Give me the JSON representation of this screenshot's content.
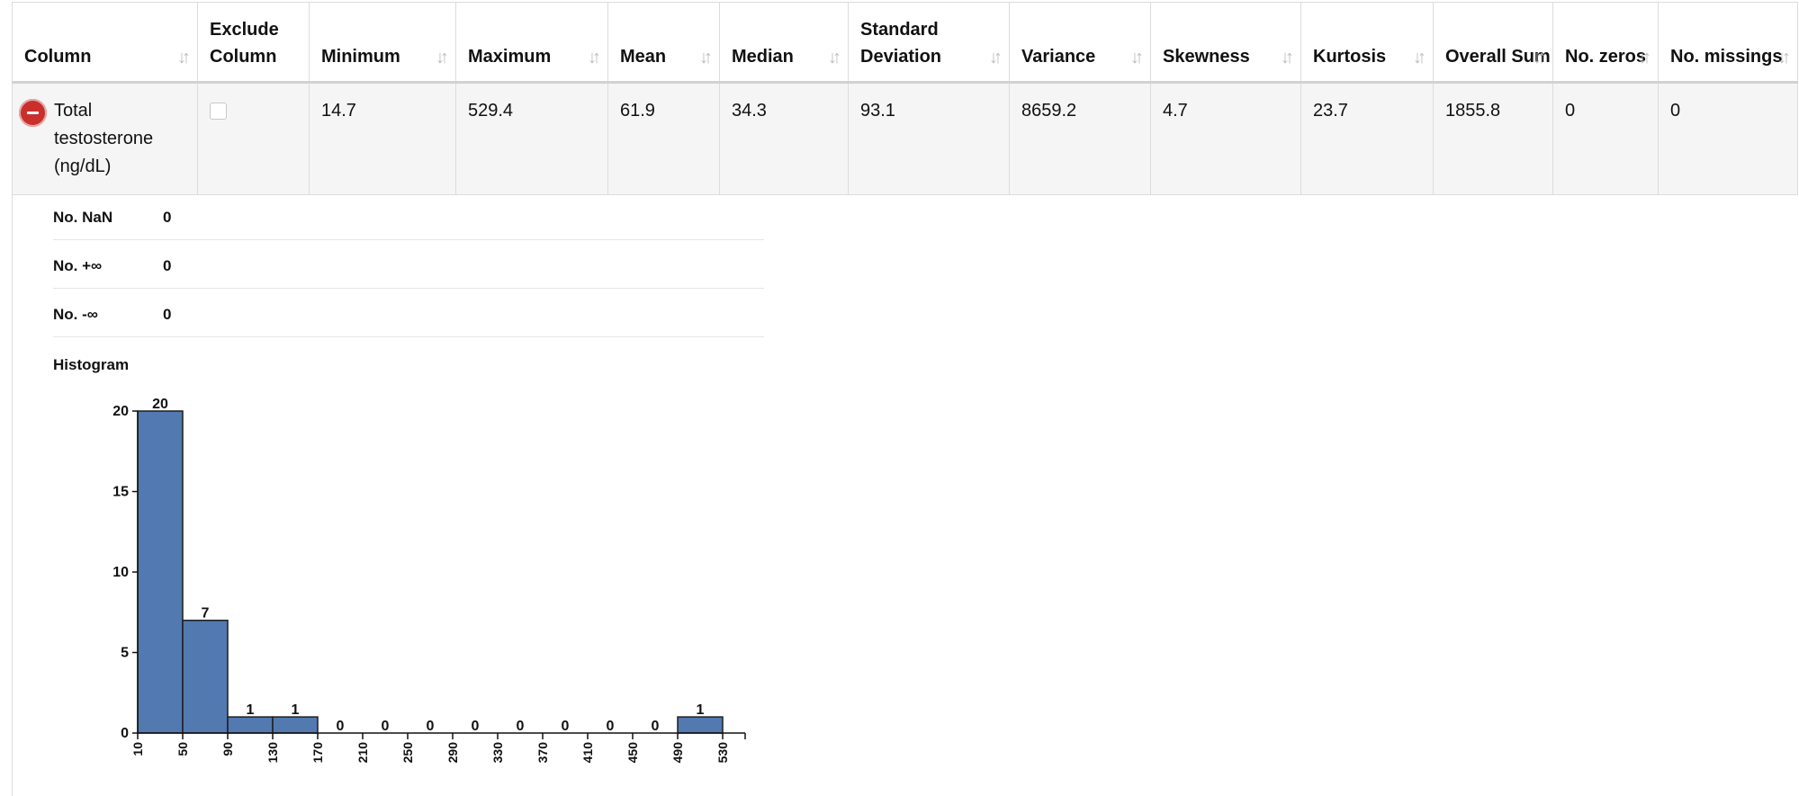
{
  "table": {
    "headers": [
      {
        "key": "column",
        "label": "Column"
      },
      {
        "key": "exclude",
        "label": "Exclude Column"
      },
      {
        "key": "min",
        "label": "Minimum"
      },
      {
        "key": "max",
        "label": "Maximum"
      },
      {
        "key": "mean",
        "label": "Mean"
      },
      {
        "key": "median",
        "label": "Median"
      },
      {
        "key": "std",
        "label": "Standard Deviation"
      },
      {
        "key": "variance",
        "label": "Variance"
      },
      {
        "key": "skewness",
        "label": "Skewness"
      },
      {
        "key": "kurtosis",
        "label": "Kurtosis"
      },
      {
        "key": "sum",
        "label": "Overall Sum"
      },
      {
        "key": "zeros",
        "label": "No. zeros"
      },
      {
        "key": "missings",
        "label": "No. missings"
      }
    ],
    "row": {
      "column": "Total testosterone (ng/dL)",
      "exclude_checked": false,
      "min": "14.7",
      "max": "529.4",
      "mean": "61.9",
      "median": "34.3",
      "std": "93.1",
      "variance": "8659.2",
      "skewness": "4.7",
      "kurtosis": "23.7",
      "sum": "1855.8",
      "zeros": "0",
      "missings": "0"
    },
    "sort_icon": "sort-arrows-icon",
    "remove_icon": "minus-circle-icon"
  },
  "details": {
    "stats": [
      {
        "label": "No. NaN",
        "value": "0"
      },
      {
        "label": "No. +∞",
        "value": "0"
      },
      {
        "label": "No. -∞",
        "value": "0"
      }
    ],
    "histogram_title": "Histogram"
  },
  "colors": {
    "bar": "#5279b0",
    "remove_button": "#c9302c",
    "sort_icon": "#bdbdbd"
  },
  "chart_data": {
    "type": "bar",
    "bin_edges": [
      10,
      50,
      90,
      130,
      170,
      210,
      250,
      290,
      330,
      370,
      410,
      450,
      490,
      530
    ],
    "values": [
      20,
      7,
      1,
      1,
      0,
      0,
      0,
      0,
      0,
      0,
      0,
      0,
      1
    ],
    "yticks": [
      0,
      5,
      10,
      15,
      20
    ],
    "ylim": [
      0,
      20
    ],
    "title": "",
    "xlabel": "",
    "ylabel": ""
  }
}
